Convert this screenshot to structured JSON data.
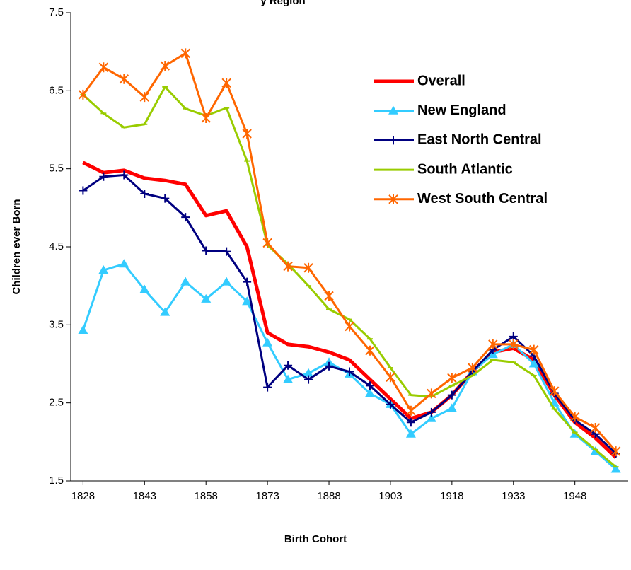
{
  "chart_data": {
    "type": "line",
    "title": "y Region",
    "x_label": "Birth Cohort",
    "y_label": "Children ever Born",
    "x": [
      1828,
      1833,
      1838,
      1843,
      1848,
      1853,
      1858,
      1863,
      1868,
      1873,
      1878,
      1883,
      1888,
      1893,
      1898,
      1903,
      1908,
      1913,
      1918,
      1923,
      1928,
      1933,
      1938,
      1943,
      1948,
      1953,
      1958
    ],
    "xlim": [
      1825,
      1961
    ],
    "xticks": [
      1828,
      1843,
      1858,
      1873,
      1888,
      1903,
      1918,
      1933,
      1948
    ],
    "ylim": [
      1.5,
      7.5
    ],
    "yticks": [
      1.5,
      2.5,
      3.5,
      4.5,
      5.5,
      6.5,
      7.5
    ],
    "legend": "upper right",
    "series": [
      {
        "name": "Overall",
        "color": "#ff0000",
        "marker": "none",
        "width": 5,
        "values": [
          5.58,
          5.45,
          5.48,
          5.38,
          5.35,
          5.3,
          4.9,
          4.96,
          4.5,
          3.4,
          3.25,
          3.22,
          3.15,
          3.05,
          2.8,
          2.55,
          2.3,
          2.38,
          2.6,
          2.9,
          3.15,
          3.2,
          3.05,
          2.6,
          2.25,
          2.05,
          1.8
        ]
      },
      {
        "name": "New England",
        "color": "#33ccff",
        "marker": "triangle",
        "width": 3,
        "values": [
          3.43,
          4.2,
          4.28,
          3.95,
          3.66,
          4.05,
          3.83,
          4.05,
          3.8,
          3.27,
          2.8,
          2.88,
          3.02,
          2.87,
          2.62,
          2.48,
          2.1,
          2.3,
          2.43,
          2.9,
          3.12,
          3.25,
          3,
          2.5,
          2.1,
          1.88,
          1.65
        ]
      },
      {
        "name": "East North Central",
        "color": "#000080",
        "marker": "plus",
        "width": 3,
        "values": [
          5.22,
          5.4,
          5.42,
          5.18,
          5.12,
          4.88,
          4.45,
          4.44,
          4.05,
          2.7,
          2.98,
          2.8,
          2.97,
          2.9,
          2.72,
          2.48,
          2.25,
          2.38,
          2.6,
          2.9,
          3.18,
          3.35,
          3.1,
          2.62,
          2.28,
          2.1,
          1.85
        ]
      },
      {
        "name": "South Atlantic",
        "color": "#99cc00",
        "marker": "dash",
        "width": 3,
        "values": [
          6.45,
          6.21,
          6.03,
          6.07,
          6.55,
          6.27,
          6.18,
          6.28,
          5.6,
          4.52,
          4.28,
          4,
          3.7,
          3.57,
          3.32,
          2.95,
          2.6,
          2.58,
          2.72,
          2.85,
          3.05,
          3.02,
          2.85,
          2.42,
          2.12,
          1.9,
          1.68
        ]
      },
      {
        "name": "West South Central",
        "color": "#ff6600",
        "marker": "star",
        "width": 3,
        "values": [
          6.45,
          6.8,
          6.65,
          6.42,
          6.82,
          6.98,
          6.15,
          6.6,
          5.95,
          4.55,
          4.25,
          4.23,
          3.87,
          3.48,
          3.17,
          2.83,
          2.4,
          2.62,
          2.82,
          2.95,
          3.25,
          3.25,
          3.18,
          2.65,
          2.32,
          2.18,
          1.88
        ]
      }
    ]
  }
}
